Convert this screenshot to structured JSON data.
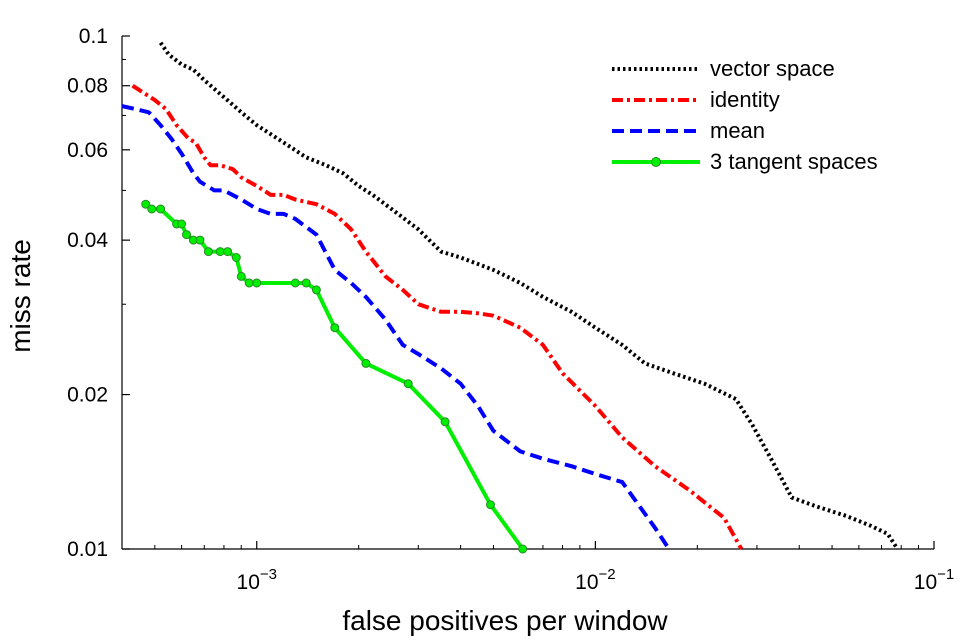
{
  "chart_data": {
    "type": "line",
    "title": "",
    "xlabel": "false positives per window",
    "ylabel": "miss rate",
    "xscale": "log",
    "yscale": "log",
    "xlim": [
      0.0004,
      0.1
    ],
    "ylim": [
      0.01,
      0.1
    ],
    "grid": false,
    "legend_position": "top-right",
    "x_ticks": [
      {
        "value": 0.001,
        "base": "10",
        "exp": "−3"
      },
      {
        "value": 0.01,
        "base": "10",
        "exp": "−2"
      },
      {
        "value": 0.1,
        "base": "10",
        "exp": "−1"
      }
    ],
    "y_ticks": [
      {
        "value": 0.01,
        "label": "0.01"
      },
      {
        "value": 0.02,
        "label": "0.02"
      },
      {
        "value": 0.04,
        "label": "0.04"
      },
      {
        "value": 0.06,
        "label": "0.06"
      },
      {
        "value": 0.08,
        "label": "0.08"
      },
      {
        "value": 0.1,
        "label": "0.1"
      }
    ],
    "series": [
      {
        "name": "vector space",
        "color": "#000000",
        "style": "dotted",
        "markers": false,
        "x": [
          0.00052,
          0.00055,
          0.0006,
          0.00065,
          0.0007,
          0.0008,
          0.0009,
          0.001,
          0.0012,
          0.0014,
          0.0016,
          0.0018,
          0.002,
          0.0022,
          0.0025,
          0.003,
          0.0035,
          0.004,
          0.005,
          0.006,
          0.007,
          0.0085,
          0.01,
          0.012,
          0.014,
          0.017,
          0.021,
          0.026,
          0.029,
          0.033,
          0.038,
          0.045,
          0.055,
          0.065,
          0.073,
          0.078
        ],
        "y": [
          0.097,
          0.092,
          0.088,
          0.086,
          0.082,
          0.076,
          0.071,
          0.067,
          0.062,
          0.058,
          0.056,
          0.054,
          0.051,
          0.049,
          0.046,
          0.042,
          0.038,
          0.037,
          0.035,
          0.033,
          0.031,
          0.029,
          0.027,
          0.025,
          0.023,
          0.022,
          0.021,
          0.0196,
          0.0175,
          0.015,
          0.0126,
          0.0121,
          0.0116,
          0.0111,
          0.0107,
          0.01
        ]
      },
      {
        "name": "identity",
        "color": "#ff0000",
        "style": "dashdot",
        "markers": false,
        "x": [
          0.00043,
          0.00047,
          0.0005,
          0.00054,
          0.00058,
          0.00063,
          0.00066,
          0.0007,
          0.00073,
          0.00078,
          0.00085,
          0.0009,
          0.001,
          0.0011,
          0.0012,
          0.0013,
          0.0015,
          0.0017,
          0.0019,
          0.0021,
          0.0024,
          0.0027,
          0.003,
          0.0035,
          0.004,
          0.0045,
          0.005,
          0.006,
          0.007,
          0.008,
          0.01,
          0.012,
          0.015,
          0.019,
          0.024,
          0.027
        ],
        "y": [
          0.08,
          0.077,
          0.075,
          0.072,
          0.067,
          0.063,
          0.062,
          0.058,
          0.056,
          0.056,
          0.055,
          0.053,
          0.051,
          0.049,
          0.049,
          0.048,
          0.047,
          0.045,
          0.042,
          0.038,
          0.034,
          0.032,
          0.03,
          0.029,
          0.029,
          0.0288,
          0.0285,
          0.027,
          0.025,
          0.022,
          0.019,
          0.0165,
          0.0145,
          0.013,
          0.0115,
          0.01
        ]
      },
      {
        "name": "mean",
        "color": "#0000ff",
        "style": "dashed",
        "markers": false,
        "x": [
          0.0004,
          0.00044,
          0.00048,
          0.00052,
          0.00056,
          0.0006,
          0.00065,
          0.00068,
          0.00075,
          0.0008,
          0.0009,
          0.001,
          0.0011,
          0.0012,
          0.0013,
          0.0015,
          0.0017,
          0.0019,
          0.0021,
          0.0024,
          0.0027,
          0.003,
          0.0035,
          0.004,
          0.0045,
          0.005,
          0.006,
          0.007,
          0.0085,
          0.01,
          0.012,
          0.015,
          0.0165
        ],
        "y": [
          0.073,
          0.072,
          0.071,
          0.067,
          0.063,
          0.059,
          0.054,
          0.052,
          0.05,
          0.05,
          0.048,
          0.046,
          0.045,
          0.045,
          0.044,
          0.041,
          0.035,
          0.033,
          0.031,
          0.028,
          0.025,
          0.024,
          0.0225,
          0.021,
          0.019,
          0.017,
          0.0155,
          0.015,
          0.0145,
          0.014,
          0.0135,
          0.011,
          0.01
        ]
      },
      {
        "name": "3 tangent spaces",
        "color": "#00ee00",
        "style": "solid",
        "markers": true,
        "x": [
          0.00047,
          0.00049,
          0.00052,
          0.00058,
          0.0006,
          0.00062,
          0.00065,
          0.00068,
          0.00072,
          0.00078,
          0.00082,
          0.00087,
          0.0009,
          0.00095,
          0.001,
          0.0013,
          0.0014,
          0.0015,
          0.0017,
          0.0021,
          0.0028,
          0.0036,
          0.0049,
          0.0061
        ],
        "y": [
          0.047,
          0.046,
          0.046,
          0.043,
          0.043,
          0.041,
          0.04,
          0.04,
          0.038,
          0.038,
          0.038,
          0.037,
          0.034,
          0.033,
          0.033,
          0.033,
          0.033,
          0.032,
          0.027,
          0.023,
          0.021,
          0.0177,
          0.0122,
          0.01
        ]
      }
    ]
  }
}
